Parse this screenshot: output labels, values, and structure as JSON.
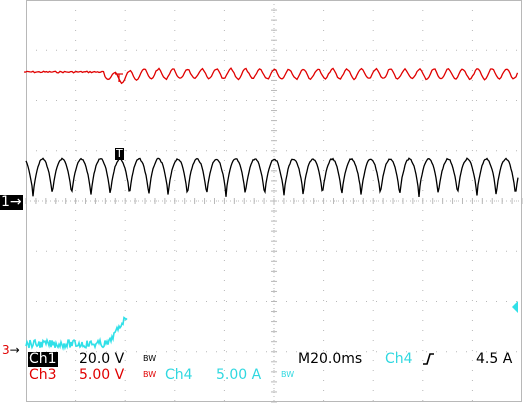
{
  "colors": {
    "ch1": "#000000",
    "ch3": "#e00000",
    "ch4": "#30e0e8",
    "grid": "#b8b8b8",
    "marker_bg": "#000000",
    "marker_fg": "#ffffff"
  },
  "markers": {
    "ch1": "1",
    "ch3": "3",
    "trigger": "T"
  },
  "status": {
    "ch1_label": "Ch1",
    "ch1_scale": "20.0 V",
    "ch3_label": "Ch3",
    "ch3_scale": "5.00 V",
    "ch4_label": "Ch4",
    "ch4_scale": "5.00 A",
    "bw_limit": "BW",
    "timebase": "M20.0ms",
    "trigger_source": "Ch4",
    "trigger_slope": "rising-edge-icon",
    "trigger_level": "4.5 A"
  }
}
